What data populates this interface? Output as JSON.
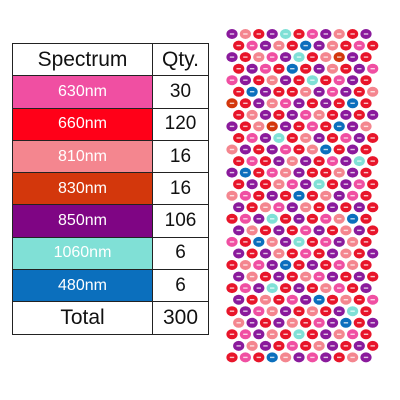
{
  "table": {
    "header": {
      "spectrum": "Spectrum",
      "qty": "Qty."
    },
    "rows": [
      {
        "label": "630nm",
        "qty": "30",
        "color": "#f04fa2"
      },
      {
        "label": "660nm",
        "qty": "120",
        "color": "#ff0018"
      },
      {
        "label": "810nm",
        "qty": "16",
        "color": "#f4868f"
      },
      {
        "label": "830nm",
        "qty": "16",
        "color": "#d3370c"
      },
      {
        "label": "850nm",
        "qty": "106",
        "color": "#7f0584"
      },
      {
        "label": "1060nm",
        "qty": "6",
        "color": "#80e0d6"
      },
      {
        "label": "480nm",
        "qty": "6",
        "color": "#0b6fbd"
      }
    ],
    "total": {
      "label": "Total",
      "qty": "300"
    }
  },
  "board": {
    "colors": {
      "a": "#f04fa2",
      "r": "#e8152a",
      "s": "#f4868f",
      "o": "#d3370c",
      "p": "#8a1a9c",
      "c": "#80e0d6",
      "b": "#0b6fbd"
    },
    "rows": [
      "psrpcrapsrp",
      "rapsrbpsrar",
      "prsapcrsopr",
      "rparbrpsrpa",
      "aprsprcrapr",
      "rbprrspaprs",
      "orpsaprprbr",
      "rsprpasrprp",
      "prsoprarbps",
      "rapcrsprapr",
      "sprparsbrpr",
      "rarpsprapcr",
      "pbrasprrspr",
      "rprsapcrpar",
      "sarprbrspar",
      "prsapsrprpr",
      "rapcrprasbr",
      "psrpraprspr",
      "arbspcrapsr",
      "prpsrarpsrp",
      "rsapbrprasr",
      "psrprsaprpr",
      "rapcrprsarp",
      "prsrapbrsra",
      "rpasprsrpcr",
      "sprpsrapbrp",
      "rapsrcrpsar",
      "psprarsprpr",
      "rarbspaprsp"
    ]
  }
}
